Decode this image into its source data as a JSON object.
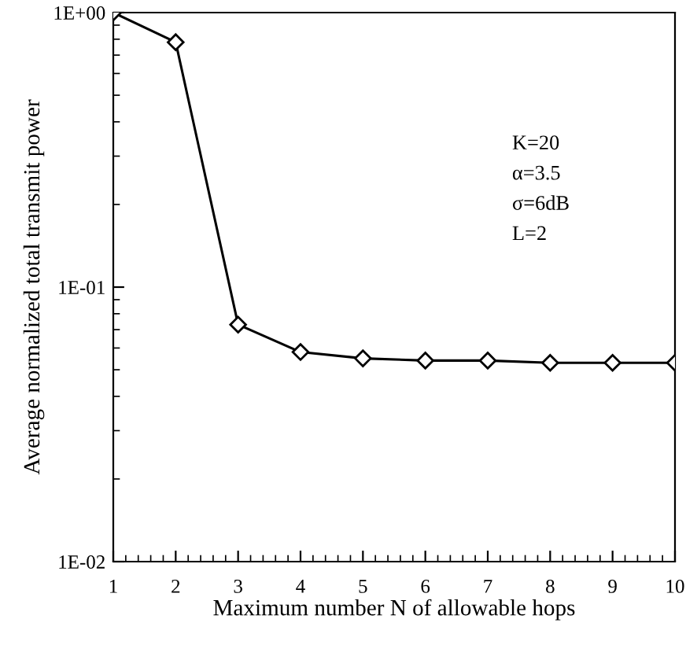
{
  "chart_data": {
    "type": "line",
    "xlabel": "Maximum number N of allowable hops",
    "ylabel": "Average normalized total transmit power",
    "x": [
      1,
      2,
      3,
      4,
      5,
      6,
      7,
      8,
      9,
      10
    ],
    "series": [
      {
        "color": "#000000",
        "values": [
          1.0,
          0.78,
          0.073,
          0.058,
          0.055,
          0.054,
          0.054,
          0.053,
          0.053,
          0.053
        ]
      }
    ],
    "xlim": [
      1,
      10
    ],
    "xticks": [
      1,
      2,
      3,
      4,
      5,
      6,
      7,
      8,
      9,
      10
    ],
    "ylim": [
      0.01,
      1
    ],
    "yticks": [
      {
        "value": 0.01,
        "label": "1E-02"
      },
      {
        "value": 0.1,
        "label": "1E-01"
      },
      {
        "value": 1,
        "label": "1E+00"
      }
    ],
    "log": "y",
    "grid": false,
    "marker": "diamond",
    "line_style": "solid",
    "annotations": [
      {
        "text": "K=20"
      },
      {
        "text": "α=3.5"
      },
      {
        "text": "σ=6dB"
      },
      {
        "text": "L=2"
      }
    ]
  }
}
